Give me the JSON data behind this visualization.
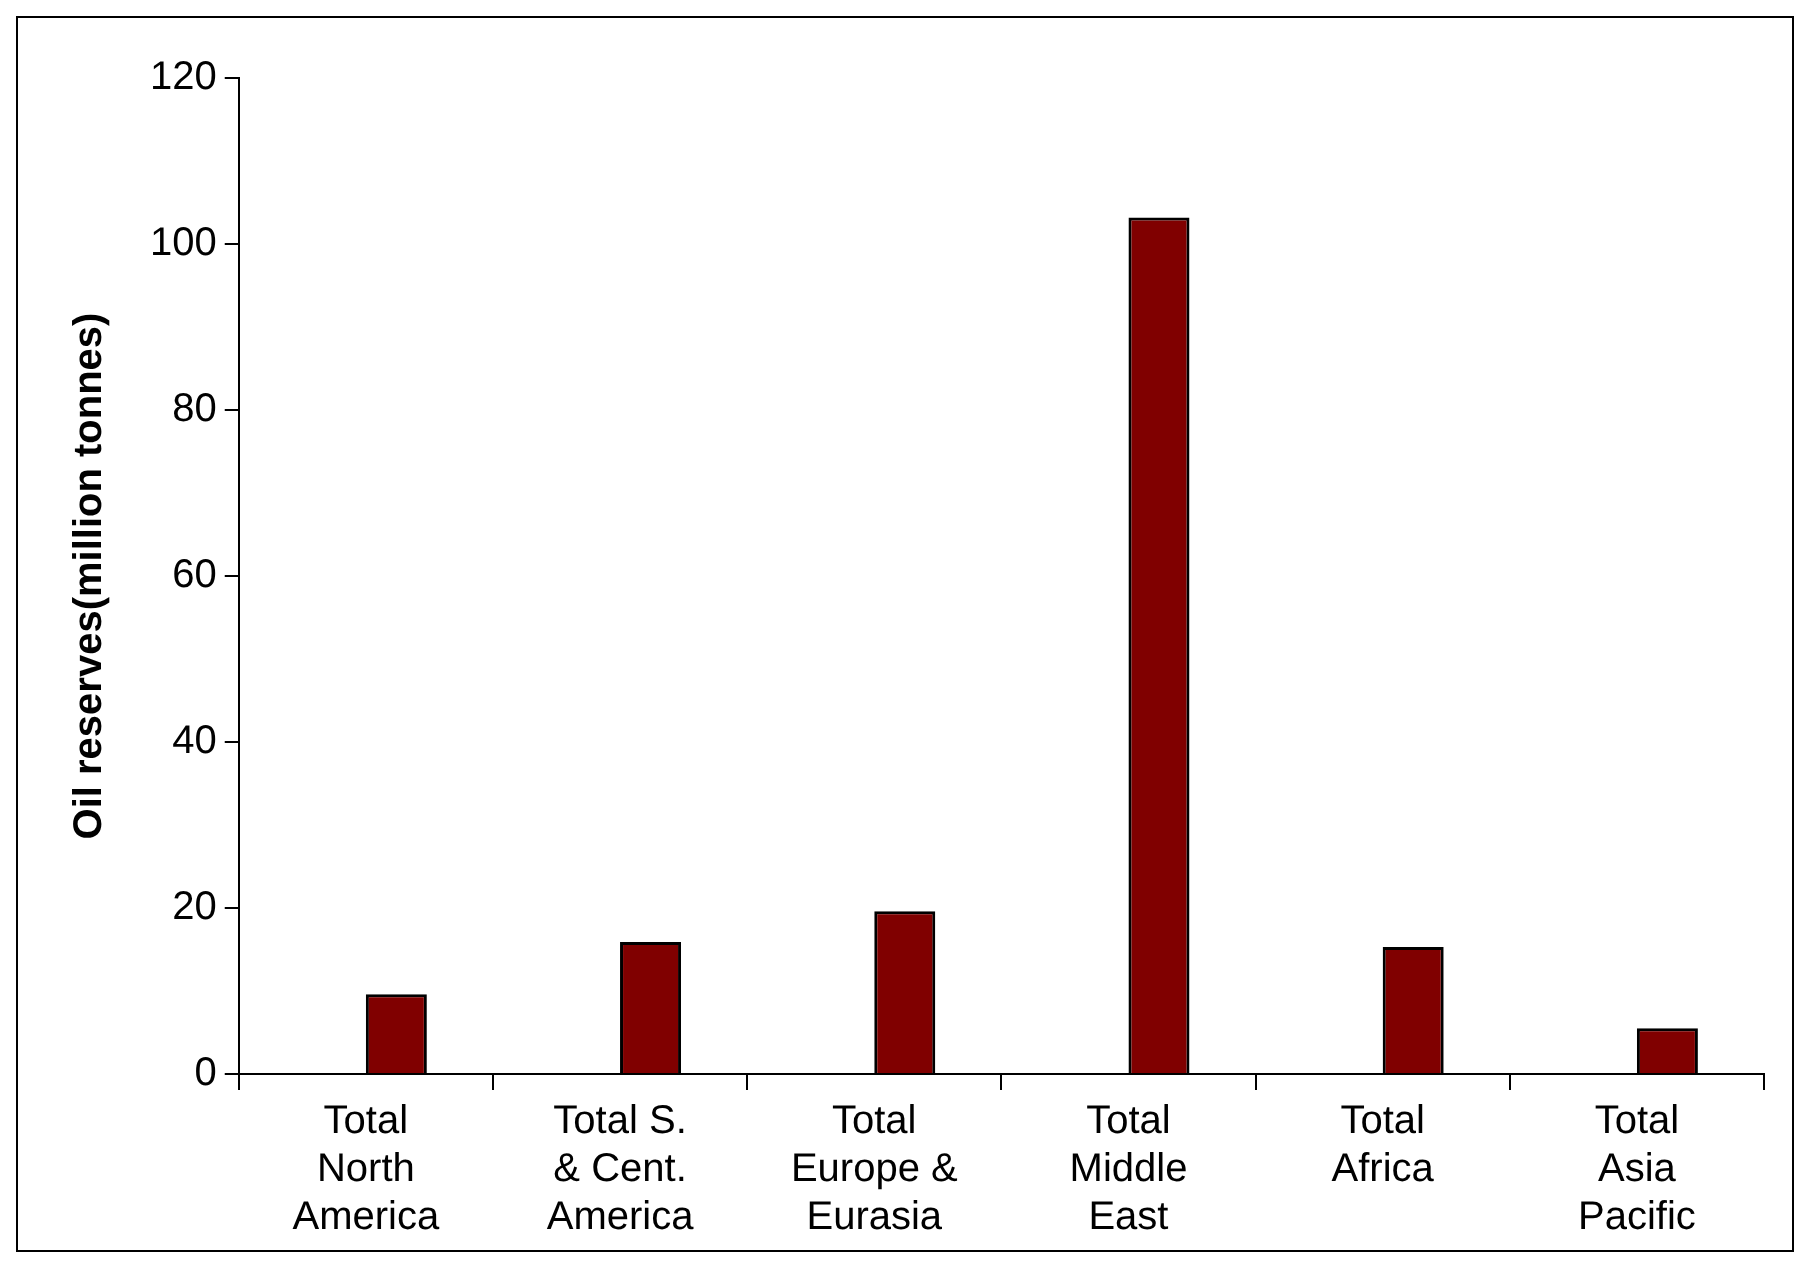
{
  "chart_data": {
    "type": "bar",
    "ylabel": "Oil reserves(million tonnes)",
    "categories": [
      "Total North America",
      "Total S. & Cent. America",
      "Total Europe & Eurasia",
      "Total Middle East",
      "Total Africa",
      "Total Asia Pacific"
    ],
    "values": [
      9.6,
      15.9,
      19.6,
      103.2,
      15.3,
      5.5
    ],
    "color": "#800000",
    "ylim": [
      0,
      120
    ],
    "yticks": [
      0,
      20,
      40,
      60,
      80,
      100,
      120
    ],
    "grid": false,
    "legend": false
  }
}
